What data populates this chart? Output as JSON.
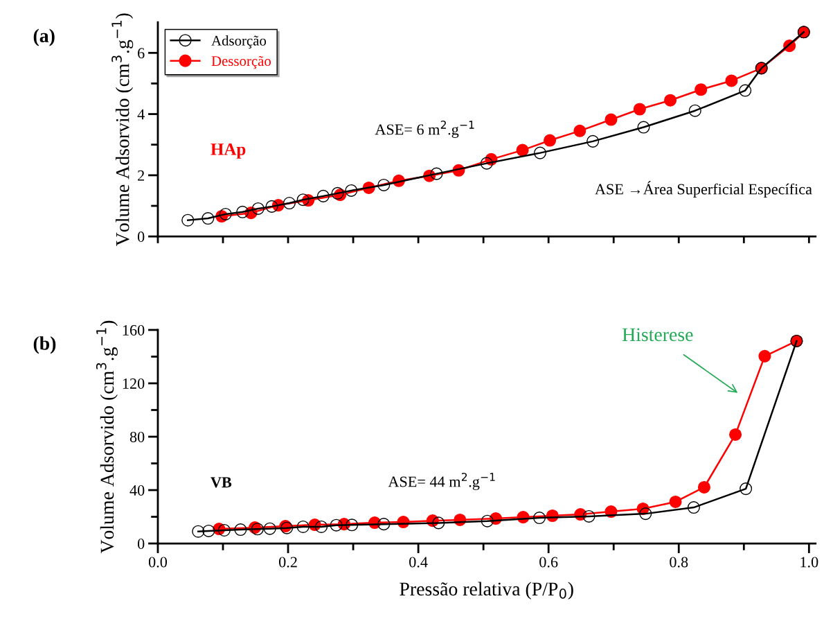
{
  "chart_data": [
    {
      "type": "line",
      "title": "(a)",
      "ylabel": "Volume Adsorvido (cm$^{3}$.g$^{−1}$)",
      "series": [
        {
          "name": "Adsorção",
          "color": "#000000",
          "marker": "circle",
          "x": [
            0.046,
            0.077,
            0.104,
            0.13,
            0.154,
            0.175,
            0.202,
            0.223,
            0.254,
            0.276,
            0.297,
            0.347,
            0.428,
            0.505,
            0.587,
            0.668,
            0.746,
            0.825,
            0.902,
            0.927,
            0.992
          ],
          "values": [
            0.53,
            0.59,
            0.73,
            0.8,
            0.91,
            0.98,
            1.09,
            1.2,
            1.32,
            1.41,
            1.5,
            1.68,
            2.05,
            2.39,
            2.73,
            3.11,
            3.57,
            4.11,
            4.77,
            5.5,
            6.68
          ]
        },
        {
          "name": "Dessorção",
          "color": "#ff0000",
          "marker": "circle",
          "x": [
            0.992,
            0.97,
            0.927,
            0.881,
            0.834,
            0.787,
            0.74,
            0.696,
            0.648,
            0.602,
            0.56,
            0.512,
            0.462,
            0.417,
            0.37,
            0.324,
            0.28,
            0.231,
            0.185,
            0.143,
            0.098
          ],
          "values": [
            6.68,
            6.23,
            5.5,
            5.09,
            4.8,
            4.45,
            4.16,
            3.82,
            3.45,
            3.14,
            2.82,
            2.52,
            2.16,
            1.98,
            1.82,
            1.59,
            1.36,
            1.18,
            1.02,
            0.77,
            0.66
          ]
        }
      ],
      "xlim": [
        0,
        1.01
      ],
      "xticks": [
        {
          "value": 0,
          "label": null
        },
        {
          "value": 0.1,
          "label": null
        },
        {
          "value": 0.2,
          "label": null
        },
        {
          "value": 0.3,
          "label": null
        },
        {
          "value": 0.4,
          "label": null
        },
        {
          "value": 0.5,
          "label": null
        },
        {
          "value": 0.6,
          "label": null
        },
        {
          "value": 0.7,
          "label": null
        },
        {
          "value": 0.8,
          "label": null
        },
        {
          "value": 0.9,
          "label": null
        },
        {
          "value": 1.0,
          "label": null
        }
      ],
      "ylim": [
        0,
        7
      ],
      "yticks": [
        0,
        {
          "value": 1,
          "label": null
        },
        2,
        {
          "value": 3,
          "label": null
        },
        4,
        {
          "value": 5,
          "label": null
        },
        6
      ],
      "tick_labels": "y",
      "legend": "top left",
      "grid": false,
      "annotations": [
        "HAp",
        "ASE= 6 m$^{2}$.g$^{−1}$",
        "ASE →Área Superficial Específica"
      ]
    },
    {
      "type": "line",
      "title": "(b)",
      "xlabel": "Pressão relativa (P/P$_{0}$)",
      "ylabel": "Volume Adsorvido (cm$^{3}$.g$^{−1}$)",
      "series": [
        {
          "color": "#000000",
          "marker": "circle",
          "x": [
            0.062,
            0.078,
            0.102,
            0.127,
            0.153,
            0.172,
            0.198,
            0.223,
            0.251,
            0.274,
            0.298,
            0.347,
            0.431,
            0.506,
            0.586,
            0.662,
            0.749,
            0.823,
            0.903,
            0.981
          ],
          "values": [
            9.0,
            9.4,
            9.9,
            10.4,
            10.8,
            11.1,
            11.6,
            12.5,
            12.5,
            13.7,
            13.9,
            14.5,
            15.4,
            16.8,
            19.2,
            20.3,
            22.3,
            27.0,
            41.0,
            151.7
          ]
        },
        {
          "color": "#ff0000",
          "marker": "circle",
          "x": [
            0.981,
            0.932,
            0.887,
            0.839,
            0.795,
            0.745,
            0.696,
            0.649,
            0.606,
            0.561,
            0.519,
            0.464,
            0.422,
            0.377,
            0.333,
            0.286,
            0.241,
            0.196,
            0.149,
            0.094
          ],
          "values": [
            151.7,
            140.3,
            81.6,
            42.1,
            31.2,
            26.0,
            23.9,
            21.8,
            20.8,
            19.7,
            18.7,
            17.7,
            17.1,
            16.1,
            15.6,
            14.5,
            14.0,
            13.0,
            11.9,
            10.9
          ]
        }
      ],
      "xlim": [
        0,
        1.01
      ],
      "xticks": [
        {
          "value": 0,
          "label": "0.0"
        },
        {
          "value": 0.1,
          "label": null
        },
        {
          "value": 0.2,
          "label": "0.2"
        },
        {
          "value": 0.3,
          "label": null
        },
        {
          "value": 0.4,
          "label": "0.4"
        },
        {
          "value": 0.5,
          "label": null
        },
        {
          "value": 0.6,
          "label": "0.6"
        },
        {
          "value": 0.7,
          "label": null
        },
        {
          "value": 0.8,
          "label": "0.8"
        },
        {
          "value": 0.9,
          "label": null
        },
        {
          "value": 1.0,
          "label": "1.0"
        }
      ],
      "ylim": [
        0,
        160
      ],
      "yticks": [
        0,
        {
          "value": 20,
          "label": null
        },
        40,
        {
          "value": 60,
          "label": null
        },
        80,
        {
          "value": 100,
          "label": null
        },
        120,
        {
          "value": 140,
          "label": null
        },
        160
      ],
      "grid": false,
      "annotations": [
        "VB",
        "ASE= 44 m$^{2}$.g$^{−1}$",
        "Histerese"
      ]
    }
  ]
}
